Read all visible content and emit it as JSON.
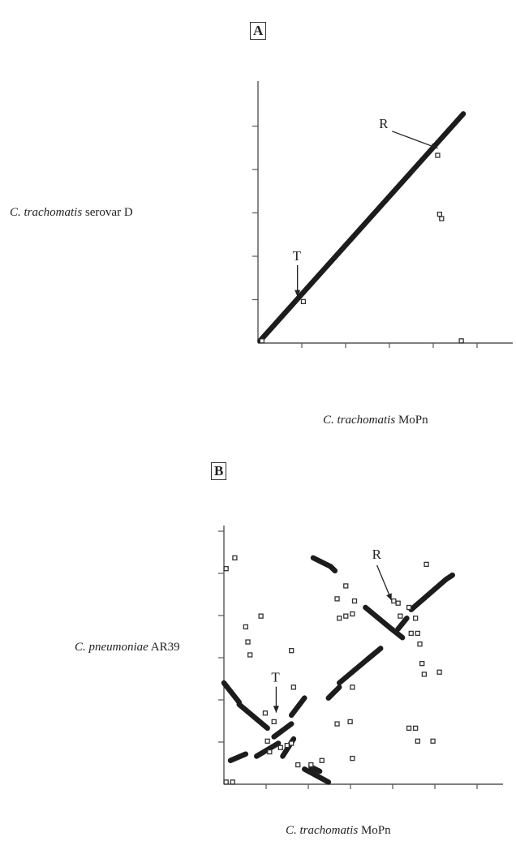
{
  "chart_data": [
    {
      "type": "scatter",
      "panel": "A",
      "ylabel_italic": "C. trachomatis",
      "ylabel_rest": " serovar D",
      "xlabel_italic": "C. trachomatis",
      "xlabel_rest": " MoPn",
      "xlim": [
        0,
        6
      ],
      "ylim": [
        0,
        6
      ],
      "grid": false,
      "annotations": [
        {
          "label": "T",
          "x": 1.0,
          "y": 0.95
        },
        {
          "label": "R",
          "x": 4.55,
          "y": 4.35
        }
      ],
      "series": [
        {
          "segments": [
            {
              "x1": 0.05,
              "y1": 0.05,
              "x2": 5.2,
              "y2": 5.25
            }
          ],
          "points": [
            [
              1.15,
              0.95
            ],
            [
              4.55,
              4.3
            ],
            [
              4.6,
              2.95
            ],
            [
              4.65,
              2.85
            ],
            [
              5.15,
              0.05
            ],
            [
              0.1,
              0.05
            ]
          ]
        }
      ]
    },
    {
      "type": "scatter",
      "panel": "B",
      "ylabel_italic": "C. pneumoniae",
      "ylabel_rest": " AR39",
      "xlabel_italic": "C. trachomatis",
      "xlabel_rest": " MoPn",
      "xlim": [
        0,
        6
      ],
      "ylim": [
        0,
        6
      ],
      "grid": false,
      "annotations": [
        {
          "label": "T",
          "x": 1.2,
          "y": 1.55
        },
        {
          "label": "R",
          "x": 3.85,
          "y": 4.15
        }
      ],
      "series": [
        {
          "segments": [
            {
              "x1": 0.0,
              "y1": 2.35,
              "x2": 0.35,
              "y2": 1.9
            },
            {
              "x1": 0.35,
              "y1": 1.85,
              "x2": 1.0,
              "y2": 1.3
            },
            {
              "x1": 0.15,
              "y1": 0.55,
              "x2": 0.5,
              "y2": 0.7
            },
            {
              "x1": 0.75,
              "y1": 0.65,
              "x2": 1.25,
              "y2": 0.95
            },
            {
              "x1": 1.35,
              "y1": 0.65,
              "x2": 1.6,
              "y2": 1.05
            },
            {
              "x1": 1.15,
              "y1": 1.1,
              "x2": 1.55,
              "y2": 1.4
            },
            {
              "x1": 1.55,
              "y1": 1.6,
              "x2": 1.85,
              "y2": 2.0
            },
            {
              "x1": 1.85,
              "y1": 0.35,
              "x2": 2.4,
              "y2": 0.05
            },
            {
              "x1": 2.0,
              "y1": 0.4,
              "x2": 2.2,
              "y2": 0.3
            },
            {
              "x1": 2.4,
              "y1": 2.0,
              "x2": 2.65,
              "y2": 2.25
            },
            {
              "x1": 2.65,
              "y1": 2.35,
              "x2": 3.3,
              "y2": 2.9
            },
            {
              "x1": 3.3,
              "y1": 2.9,
              "x2": 3.6,
              "y2": 3.15
            },
            {
              "x1": 2.05,
              "y1": 5.25,
              "x2": 2.45,
              "y2": 5.05
            },
            {
              "x1": 2.45,
              "y1": 5.05,
              "x2": 2.55,
              "y2": 4.95
            },
            {
              "x1": 3.25,
              "y1": 4.1,
              "x2": 3.85,
              "y2": 3.6
            },
            {
              "x1": 3.85,
              "y1": 3.6,
              "x2": 4.1,
              "y2": 3.4
            },
            {
              "x1": 4.0,
              "y1": 3.6,
              "x2": 4.2,
              "y2": 3.85
            },
            {
              "x1": 4.3,
              "y1": 4.05,
              "x2": 5.1,
              "y2": 4.75
            },
            {
              "x1": 5.1,
              "y1": 4.75,
              "x2": 5.25,
              "y2": 4.85
            }
          ],
          "points": [
            [
              0.05,
              5.0
            ],
            [
              0.25,
              5.25
            ],
            [
              0.05,
              0.05
            ],
            [
              0.2,
              0.05
            ],
            [
              0.5,
              3.65
            ],
            [
              0.55,
              3.3
            ],
            [
              0.6,
              3.0
            ],
            [
              0.85,
              3.9
            ],
            [
              1.15,
              1.45
            ],
            [
              0.95,
              1.65
            ],
            [
              1.6,
              2.25
            ],
            [
              1.55,
              3.1
            ],
            [
              1.0,
              1.0
            ],
            [
              1.3,
              0.85
            ],
            [
              1.05,
              0.75
            ],
            [
              1.45,
              0.9
            ],
            [
              1.55,
              0.95
            ],
            [
              1.7,
              0.45
            ],
            [
              2.0,
              0.45
            ],
            [
              2.25,
              0.55
            ],
            [
              2.6,
              1.4
            ],
            [
              2.9,
              1.45
            ],
            [
              2.95,
              2.25
            ],
            [
              2.8,
              4.6
            ],
            [
              2.6,
              4.3
            ],
            [
              2.65,
              3.85
            ],
            [
              2.8,
              3.9
            ],
            [
              2.95,
              3.95
            ],
            [
              3.0,
              4.25
            ],
            [
              2.95,
              0.6
            ],
            [
              3.9,
              4.25
            ],
            [
              4.0,
              4.2
            ],
            [
              4.25,
              4.1
            ],
            [
              4.4,
              3.85
            ],
            [
              4.5,
              3.25
            ],
            [
              4.45,
              3.5
            ],
            [
              4.55,
              2.8
            ],
            [
              4.6,
              2.55
            ],
            [
              4.95,
              2.6
            ],
            [
              4.05,
              3.9
            ],
            [
              4.65,
              5.1
            ],
            [
              4.25,
              1.3
            ],
            [
              4.4,
              1.3
            ],
            [
              4.45,
              1.0
            ],
            [
              4.8,
              1.0
            ],
            [
              4.3,
              3.5
            ]
          ]
        }
      ]
    }
  ]
}
